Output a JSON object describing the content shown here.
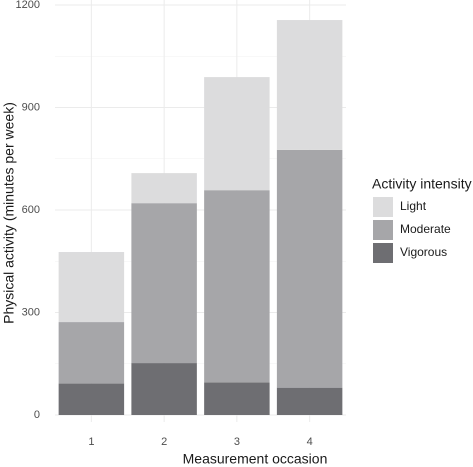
{
  "chart_data": {
    "type": "stacked_bar",
    "x_label": "Measurement occasion",
    "y_label": "Physical activity (minutes per week)",
    "legend_title": "Activity intensity",
    "categories": [
      "1",
      "2",
      "3",
      "4"
    ],
    "series": [
      {
        "name": "Vigorous",
        "color": "#6e6e72",
        "values": [
          92,
          152,
          95,
          80
        ]
      },
      {
        "name": "Moderate",
        "color": "#a6a6a9",
        "values": [
          180,
          468,
          563,
          696
        ]
      },
      {
        "name": "Light",
        "color": "#dcdcdd",
        "values": [
          205,
          88,
          331,
          380
        ]
      }
    ],
    "legend_order": [
      "Light",
      "Moderate",
      "Vigorous"
    ],
    "ylim": [
      0,
      1200
    ],
    "yticks": [
      0,
      300,
      600,
      900,
      1200
    ],
    "grid": true
  }
}
